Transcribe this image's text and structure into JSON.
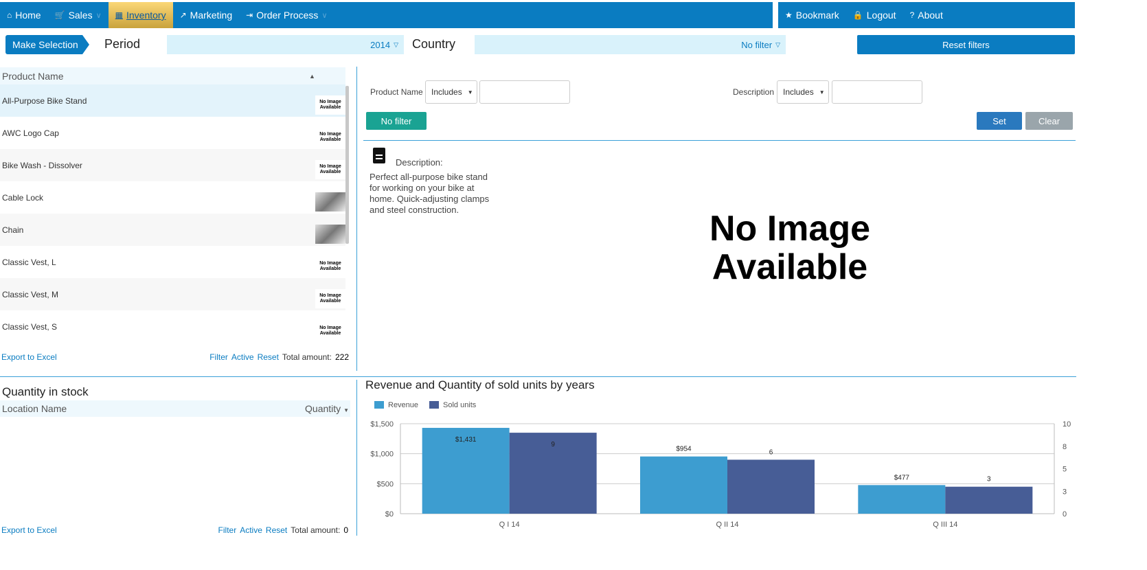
{
  "nav": {
    "items": [
      {
        "label": "Home",
        "icon": "home-icon"
      },
      {
        "label": "Sales",
        "icon": "cart-icon",
        "dropdown": true
      },
      {
        "label": "Inventory",
        "icon": "grid-icon",
        "active": true
      },
      {
        "label": "Marketing",
        "icon": "trend-icon"
      },
      {
        "label": "Order Process",
        "icon": "enter-icon",
        "dropdown": true
      }
    ],
    "right": [
      {
        "label": "Bookmark",
        "icon": "star-icon"
      },
      {
        "label": "Logout",
        "icon": "lock-icon"
      },
      {
        "label": "About",
        "icon": "help-icon"
      }
    ]
  },
  "filters": {
    "make_selection": "Make Selection",
    "period_label": "Period",
    "period_value": "2014",
    "country_label": "Country",
    "country_value": "No filter",
    "reset": "Reset filters"
  },
  "products": {
    "header": "Product Name",
    "rows": [
      {
        "name": "All-Purpose Bike Stand",
        "image": "No Image Available",
        "selected": true
      },
      {
        "name": "AWC Logo Cap",
        "image": "No Image Available"
      },
      {
        "name": "Bike Wash - Dissolver",
        "image": "No Image Available"
      },
      {
        "name": "Cable Lock",
        "image": ""
      },
      {
        "name": "Chain",
        "image": ""
      },
      {
        "name": "Classic Vest, L",
        "image": "No Image Available"
      },
      {
        "name": "Classic Vest, M",
        "image": "No Image Available"
      },
      {
        "name": "Classic Vest, S",
        "image": "No Image Available"
      }
    ],
    "export": "Export to Excel",
    "filter": "Filter",
    "active": "Active",
    "reset": "Reset",
    "total_label": "Total amount:",
    "total": "222"
  },
  "detail": {
    "pn_label": "Product Name",
    "pn_op": "Includes",
    "desc_label": "Description",
    "desc_op": "Includes",
    "no_filter": "No filter",
    "set": "Set",
    "clear": "Clear",
    "description_title": "Description:",
    "description": "Perfect all-purpose bike stand for working on your bike at home. Quick-adjusting clamps and steel construction.",
    "image_text1": "No Image",
    "image_text2": "Available"
  },
  "stock": {
    "title": "Quantity in stock",
    "col1": "Location Name",
    "col2": "Quantity",
    "export": "Export to Excel",
    "filter": "Filter",
    "active": "Active",
    "reset": "Reset",
    "total_label": "Total amount:",
    "total": "0"
  },
  "chart_data": {
    "type": "bar",
    "title": "Revenue and Quantity of sold units by years",
    "categories": [
      "Q I 14",
      "Q II 14",
      "Q III 14"
    ],
    "series": [
      {
        "name": "Revenue",
        "values": [
          1431,
          954,
          477
        ],
        "labels": [
          "$1,431",
          "$954",
          "$477"
        ],
        "color": "#3d9dd0",
        "axis": "left"
      },
      {
        "name": "Sold units",
        "values": [
          9,
          6,
          3
        ],
        "labels": [
          "9",
          "6",
          "3"
        ],
        "color": "#475d96",
        "axis": "right"
      }
    ],
    "ylim": [
      0,
      1500
    ],
    "yticks": [
      "$0",
      "$500",
      "$1,000",
      "$1,500"
    ],
    "y2lim": [
      0,
      10
    ],
    "y2ticks": [
      "0",
      "3",
      "5",
      "8",
      "10"
    ],
    "legend": "top-left",
    "grid": true
  }
}
